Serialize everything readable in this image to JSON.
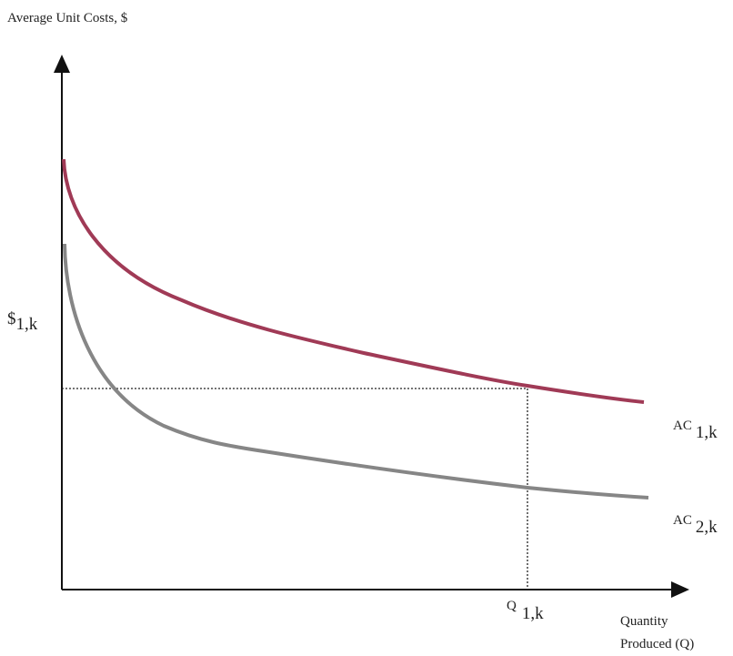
{
  "y_axis": {
    "title": "Average Unit Costs, $",
    "marker": {
      "main": "$",
      "sub": "1,k"
    }
  },
  "x_axis": {
    "marker": {
      "main": "Q",
      "sub": "1,k"
    },
    "title_lines": [
      "Quantity",
      "Produced (Q)"
    ]
  },
  "curves": [
    {
      "label": {
        "main": "AC",
        "sub": "1,k"
      }
    },
    {
      "label": {
        "main": "AC",
        "sub": "2,k"
      }
    }
  ]
}
